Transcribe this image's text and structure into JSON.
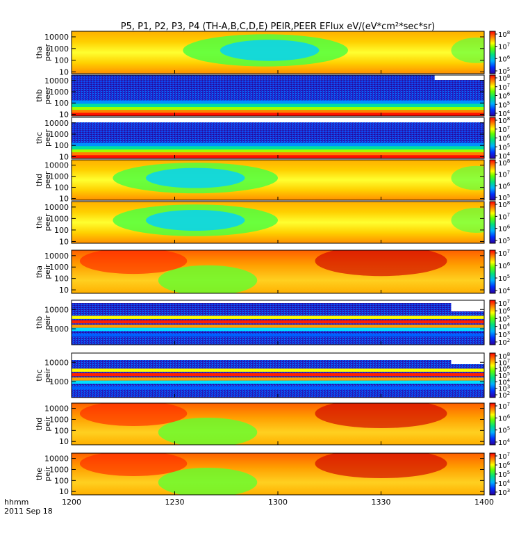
{
  "chart_data": {
    "type": "heatmap",
    "title": "P5, P1, P2, P3, P4 (TH-A,B,C,D,E) PEIR,PEER EFlux eV/(eV*cm²*sec*sr)",
    "x_tick_labels": [
      "1200",
      "1230",
      "1300",
      "1330",
      "1400"
    ],
    "x_range_hhmm": [
      "1200",
      "1400"
    ],
    "x_unit_label": "hhmm",
    "date_label": "2011 Sep 18",
    "y_scale": "log",
    "colorbar_scale": "log",
    "panels": [
      {
        "probe": "tha",
        "species": "peer",
        "y_ticks": [
          "10",
          "100",
          "1000",
          "10000"
        ],
        "colorbar_exponents": [
          "5",
          "6",
          "7",
          "8"
        ]
      },
      {
        "probe": "thb",
        "species": "peer",
        "y_ticks": [
          "10",
          "100",
          "1000",
          "10000"
        ],
        "colorbar_exponents": [
          "4",
          "5",
          "6",
          "7",
          "8"
        ]
      },
      {
        "probe": "thc",
        "species": "peer",
        "y_ticks": [
          "10",
          "100",
          "1000",
          "10000"
        ],
        "colorbar_exponents": [
          "4",
          "5",
          "6",
          "7",
          "8"
        ]
      },
      {
        "probe": "thd",
        "species": "peer",
        "y_ticks": [
          "10",
          "100",
          "1000",
          "10000"
        ],
        "colorbar_exponents": [
          "5",
          "6",
          "7",
          "8"
        ]
      },
      {
        "probe": "the",
        "species": "peer",
        "y_ticks": [
          "10",
          "100",
          "1000",
          "10000"
        ],
        "colorbar_exponents": [
          "5",
          "6",
          "7",
          "8"
        ]
      },
      {
        "probe": "tha",
        "species": "peir",
        "y_ticks": [
          "10",
          "100",
          "1000",
          "10000"
        ],
        "colorbar_exponents": [
          "4",
          "5",
          "6",
          "7"
        ]
      },
      {
        "probe": "thb",
        "species": "peir",
        "y_ticks": [
          "1000",
          "10000"
        ],
        "colorbar_exponents": [
          "2",
          "3",
          "4",
          "5",
          "6",
          "7"
        ]
      },
      {
        "probe": "thc",
        "species": "peir",
        "y_ticks": [
          "1000",
          "10000"
        ],
        "colorbar_exponents": [
          "2",
          "3",
          "4",
          "5",
          "6",
          "7",
          "8"
        ]
      },
      {
        "probe": "thd",
        "species": "peir",
        "y_ticks": [
          "10",
          "100",
          "1000",
          "10000"
        ],
        "colorbar_exponents": [
          "4",
          "5",
          "6",
          "7"
        ]
      },
      {
        "probe": "the",
        "species": "peir",
        "y_ticks": [
          "10",
          "100",
          "1000",
          "10000"
        ],
        "colorbar_exponents": [
          "3",
          "4",
          "5",
          "6",
          "7"
        ]
      }
    ]
  }
}
